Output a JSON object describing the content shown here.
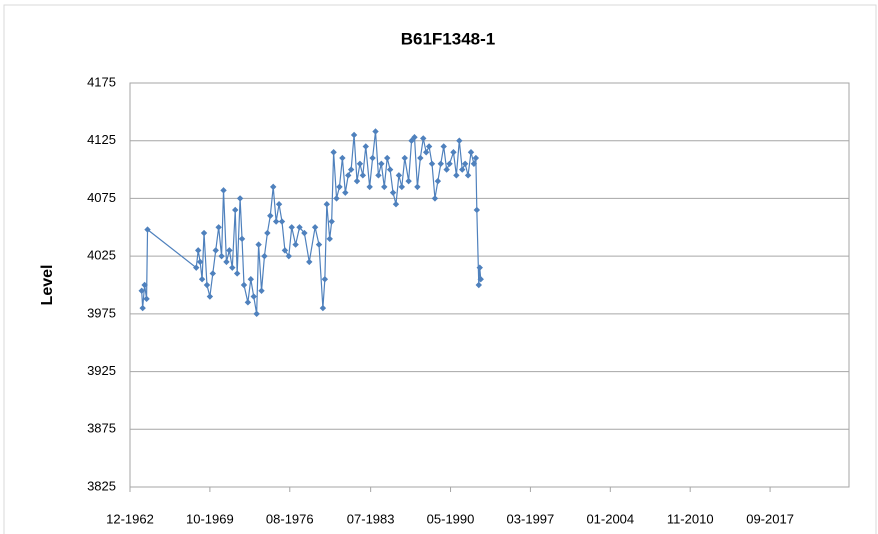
{
  "chart_data": {
    "type": "line",
    "title": "B61F1348-1",
    "y_label": "Level",
    "x": [
      "1963-12",
      "1964-01",
      "1964-03",
      "1964-05",
      "1964-06",
      "1968-08",
      "1968-10",
      "1968-12",
      "1969-02",
      "1969-04",
      "1969-07",
      "1969-10",
      "1970-01",
      "1970-04",
      "1970-07",
      "1970-10",
      "1970-12",
      "1971-03",
      "1971-06",
      "1971-09",
      "1971-12",
      "1972-02",
      "1972-05",
      "1972-07",
      "1972-09",
      "1973-01",
      "1973-04",
      "1973-07",
      "1973-10",
      "1973-12",
      "1974-03",
      "1974-06",
      "1974-09",
      "1974-12",
      "1975-03",
      "1975-06",
      "1975-09",
      "1975-12",
      "1976-03",
      "1976-07",
      "1976-10",
      "1977-02",
      "1977-06",
      "1977-11",
      "1978-04",
      "1978-10",
      "1979-02",
      "1979-06",
      "1979-08",
      "1979-10",
      "1980-01",
      "1980-03",
      "1980-05",
      "1980-08",
      "1980-11",
      "1981-02",
      "1981-05",
      "1981-08",
      "1981-11",
      "1982-02",
      "1982-05",
      "1982-08",
      "1982-11",
      "1983-02",
      "1983-06",
      "1983-09",
      "1983-12",
      "1984-03",
      "1984-06",
      "1984-09",
      "1984-12",
      "1985-03",
      "1985-06",
      "1985-09",
      "1985-12",
      "1986-03",
      "1986-06",
      "1986-10",
      "1987-01",
      "1987-04",
      "1987-07",
      "1987-10",
      "1988-01",
      "1988-04",
      "1988-07",
      "1988-10",
      "1989-01",
      "1989-04",
      "1989-07",
      "1989-10",
      "1990-01",
      "1990-04",
      "1990-08",
      "1990-11",
      "1991-02",
      "1991-05",
      "1991-08",
      "1991-11",
      "1992-02",
      "1992-05",
      "1992-07",
      "1992-08",
      "1992-10",
      "1992-11",
      "1992-12"
    ],
    "series": [
      {
        "name": "Level",
        "color": "#4f81bd",
        "values": [
          3995,
          3980,
          4000,
          3988,
          4048,
          4015,
          4030,
          4020,
          4005,
          4045,
          4000,
          3990,
          4010,
          4030,
          4050,
          4025,
          4082,
          4020,
          4030,
          4015,
          4065,
          4010,
          4075,
          4040,
          4000,
          3985,
          4005,
          3990,
          3975,
          4035,
          3995,
          4025,
          4045,
          4060,
          4085,
          4055,
          4070,
          4055,
          4030,
          4025,
          4050,
          4035,
          4050,
          4045,
          4020,
          4050,
          4035,
          3980,
          4005,
          4070,
          4040,
          4055,
          4115,
          4075,
          4085,
          4110,
          4080,
          4095,
          4100,
          4130,
          4090,
          4105,
          4095,
          4120,
          4085,
          4110,
          4133,
          4095,
          4105,
          4085,
          4110,
          4100,
          4080,
          4070,
          4095,
          4085,
          4110,
          4090,
          4125,
          4128,
          4085,
          4110,
          4127,
          4115,
          4120,
          4105,
          4075,
          4090,
          4105,
          4120,
          4100,
          4105,
          4115,
          4095,
          4125,
          4100,
          4105,
          4095,
          4115,
          4105,
          4110,
          4065,
          4000,
          4015,
          4005
        ]
      }
    ],
    "xlim": [
      "1962-12",
      "2024-06"
    ],
    "xticks": [
      {
        "value": "1962-12",
        "label": "12-1962"
      },
      {
        "value": "1969-10",
        "label": "10-1969"
      },
      {
        "value": "1976-08",
        "label": "08-1976"
      },
      {
        "value": "1983-07",
        "label": "07-1983"
      },
      {
        "value": "1990-05",
        "label": "05-1990"
      },
      {
        "value": "1997-03",
        "label": "03-1997"
      },
      {
        "value": "2004-01",
        "label": "01-2004"
      },
      {
        "value": "2010-11",
        "label": "11-2010"
      },
      {
        "value": "2017-09",
        "label": "09-2017"
      }
    ],
    "ylim": [
      3825,
      4175
    ],
    "yticks": [
      3825,
      3875,
      3925,
      3975,
      4025,
      4075,
      4125,
      4175
    ],
    "grid": true
  }
}
